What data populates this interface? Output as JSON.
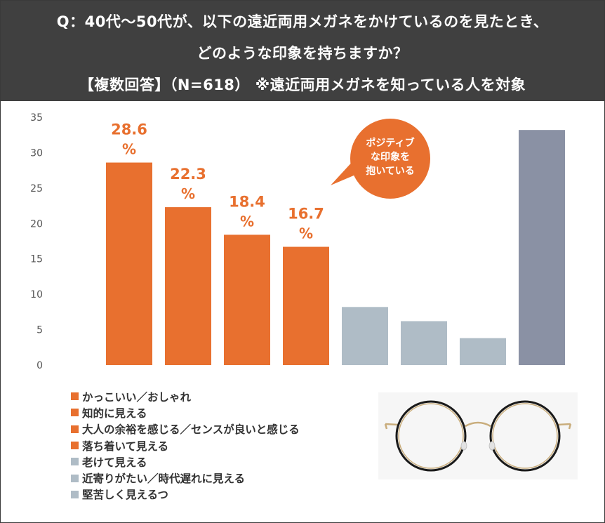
{
  "header": {
    "line1": "Q：40代～50代が、以下の遠近両用メガネをかけているのを見たとき、",
    "line2": "どのような印象を持ちますか？",
    "line3": "【複数回答】（N=618） ※遠近両用メガネを知っている人を対象"
  },
  "callout": {
    "lines": [
      "ポジティブ",
      "な印象を",
      "抱いている"
    ],
    "color": "#E8702F"
  },
  "legend": [
    {
      "label": "かっこいい／おしゃれ",
      "color": "#E8702F"
    },
    {
      "label": "知的に見える",
      "color": "#E8702F"
    },
    {
      "label": "大人の余裕を感じる／センスが良いと感じる",
      "color": "#E8702F"
    },
    {
      "label": "落ち着いて見える",
      "color": "#E8702F"
    },
    {
      "label": "老けて見える",
      "color": "#AFBCC6"
    },
    {
      "label": "近寄りがたい／時代遅れに見える",
      "color": "#AFBCC6"
    },
    {
      "label": "堅苦しく見えるつ",
      "color": "#AFBCC6"
    }
  ],
  "chart_data": {
    "type": "bar",
    "categories": [
      "かっこいい／おしゃれ",
      "知的に見える",
      "大人の余裕を感じる／センスが良いと感じる",
      "落ち着いて見える",
      "老けて見える",
      "近寄りがたい／時代遅れに見える",
      "堅苦しく見えるつ",
      ""
    ],
    "values": [
      28.6,
      22.3,
      18.4,
      16.7,
      8.2,
      6.2,
      3.8,
      33.2
    ],
    "colors": [
      "#E8702F",
      "#E8702F",
      "#E8702F",
      "#E8702F",
      "#AFBCC6",
      "#AFBCC6",
      "#AFBCC6",
      "#8A91A4"
    ],
    "data_labels": [
      {
        "value": "28.6",
        "unit": "%"
      },
      {
        "value": "22.3",
        "unit": "%"
      },
      {
        "value": "18.4",
        "unit": "%"
      },
      {
        "value": "16.7",
        "unit": "%"
      },
      null,
      null,
      null,
      null
    ],
    "yticks": [
      0,
      5,
      10,
      15,
      20,
      25,
      30,
      35
    ],
    "ylim": [
      0,
      35
    ],
    "grid": false,
    "title": "",
    "xlabel": "",
    "ylabel": "",
    "label_color": "#E8702F"
  }
}
